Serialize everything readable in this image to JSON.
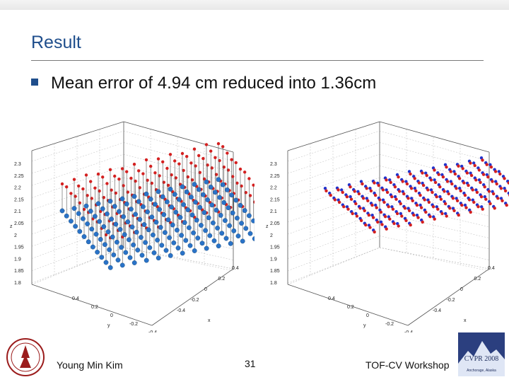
{
  "slide": {
    "title": "Result",
    "bullet": "Mean error of 4.94 cm reduced into 1.36cm",
    "footer_left": "Young Min Kim",
    "page_number": "31",
    "footer_right": "TOF-CV Workshop",
    "conference_logo_text": "CVPR 2008",
    "conference_logo_location": "Anchorage, Alaska"
  },
  "plots": [
    {
      "name": "before",
      "zlabel": "z",
      "xlabel": "x",
      "ylabel": "y",
      "zticks": [
        "2.3",
        "2.25",
        "2.2",
        "2.15",
        "2.1",
        "2.05",
        "2",
        "1.95",
        "1.9",
        "1.85",
        "1.8"
      ],
      "xticks": [
        "0.4",
        "0.2",
        "0",
        "-0.2",
        "-0.4"
      ],
      "yticks": [
        "0.4",
        "0.2",
        "0",
        "-0.2",
        "-0.4"
      ],
      "colors": {
        "truth": "#d42020",
        "measured": "#2a73c8",
        "line": "#555555"
      }
    },
    {
      "name": "after",
      "zlabel": "z",
      "xlabel": "x",
      "ylabel": "y",
      "zticks": [
        "2.3",
        "2.25",
        "2.2",
        "2.15",
        "2.1",
        "2.05",
        "2",
        "1.95",
        "1.9",
        "1.85",
        "1.8"
      ],
      "xticks": [
        "0.4",
        "0.2",
        "0",
        "-0.2",
        "-0.4"
      ],
      "yticks": [
        "0.4",
        "0.2",
        "0",
        "-0.2",
        "-0.4"
      ],
      "colors": {
        "truth": "#d42020",
        "measured": "#2233cc",
        "line": "#555555"
      }
    }
  ]
}
